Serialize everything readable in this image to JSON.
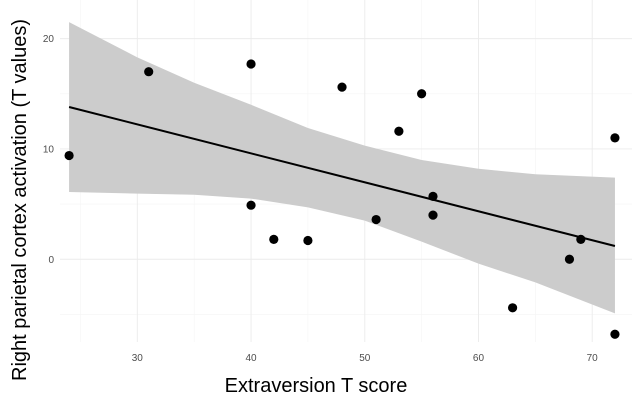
{
  "chart_data": {
    "type": "scatter",
    "title": "",
    "xlabel": "Extraversion T score",
    "ylabel": "Right parietal cortex activation (T values)",
    "xlim": [
      23.2,
      73.5
    ],
    "ylim": [
      -7.5,
      23.5
    ],
    "x_ticks": [
      30,
      40,
      50,
      60,
      70
    ],
    "y_ticks": [
      0,
      10,
      20
    ],
    "x_tick_labels": [
      "30",
      "40",
      "50",
      "60",
      "70"
    ],
    "y_tick_labels": [
      "0",
      "10",
      "20"
    ],
    "grid": true,
    "legend": "none",
    "points": [
      {
        "x": 24,
        "y": 9.4
      },
      {
        "x": 31,
        "y": 17
      },
      {
        "x": 40,
        "y": 17.7
      },
      {
        "x": 40,
        "y": 4.9
      },
      {
        "x": 42,
        "y": 1.8
      },
      {
        "x": 45,
        "y": 1.7
      },
      {
        "x": 48,
        "y": 15.6
      },
      {
        "x": 51,
        "y": 3.6
      },
      {
        "x": 53,
        "y": 11.6
      },
      {
        "x": 55,
        "y": 15
      },
      {
        "x": 56,
        "y": 5.7
      },
      {
        "x": 56,
        "y": 4
      },
      {
        "x": 63,
        "y": -4.4
      },
      {
        "x": 68,
        "y": 0
      },
      {
        "x": 69,
        "y": 1.8
      },
      {
        "x": 72,
        "y": 11
      },
      {
        "x": 72,
        "y": -6.8
      }
    ],
    "fit_line": {
      "x": [
        24,
        72
      ],
      "y": [
        13.8,
        1.2
      ]
    },
    "confidence_band": {
      "x": [
        24,
        30,
        35,
        40,
        45,
        50,
        55,
        60,
        65,
        72
      ],
      "lower": [
        6.1,
        5.95,
        5.85,
        5.5,
        4.7,
        3.5,
        1.6,
        -0.4,
        -2.1,
        -4.9
      ],
      "upper": [
        21.5,
        18.3,
        16.0,
        14.0,
        11.9,
        10.3,
        9.0,
        8.2,
        7.7,
        7.4
      ]
    },
    "colors": {
      "points": "#000000",
      "line": "#000000",
      "band": "#cccccc",
      "grid": "#ebebeb"
    }
  }
}
